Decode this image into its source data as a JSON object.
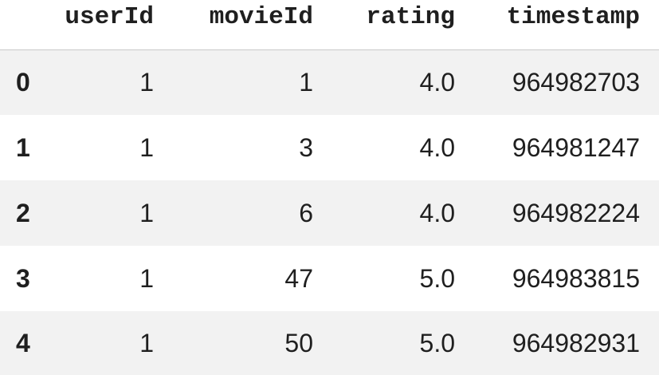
{
  "table": {
    "columns": [
      "",
      "userId",
      "movieId",
      "rating",
      "timestamp"
    ],
    "rows": [
      {
        "index": "0",
        "userId": "1",
        "movieId": "1",
        "rating": "4.0",
        "timestamp": "964982703"
      },
      {
        "index": "1",
        "userId": "1",
        "movieId": "3",
        "rating": "4.0",
        "timestamp": "964981247"
      },
      {
        "index": "2",
        "userId": "1",
        "movieId": "6",
        "rating": "4.0",
        "timestamp": "964982224"
      },
      {
        "index": "3",
        "userId": "1",
        "movieId": "47",
        "rating": "5.0",
        "timestamp": "964983815"
      },
      {
        "index": "4",
        "userId": "1",
        "movieId": "50",
        "rating": "5.0",
        "timestamp": "964982931"
      }
    ]
  },
  "colors": {
    "striped_row": "#f2f2f2",
    "plain_row": "#ffffff",
    "text": "#1f1f1f",
    "header_rule": "#c9c9c9"
  }
}
